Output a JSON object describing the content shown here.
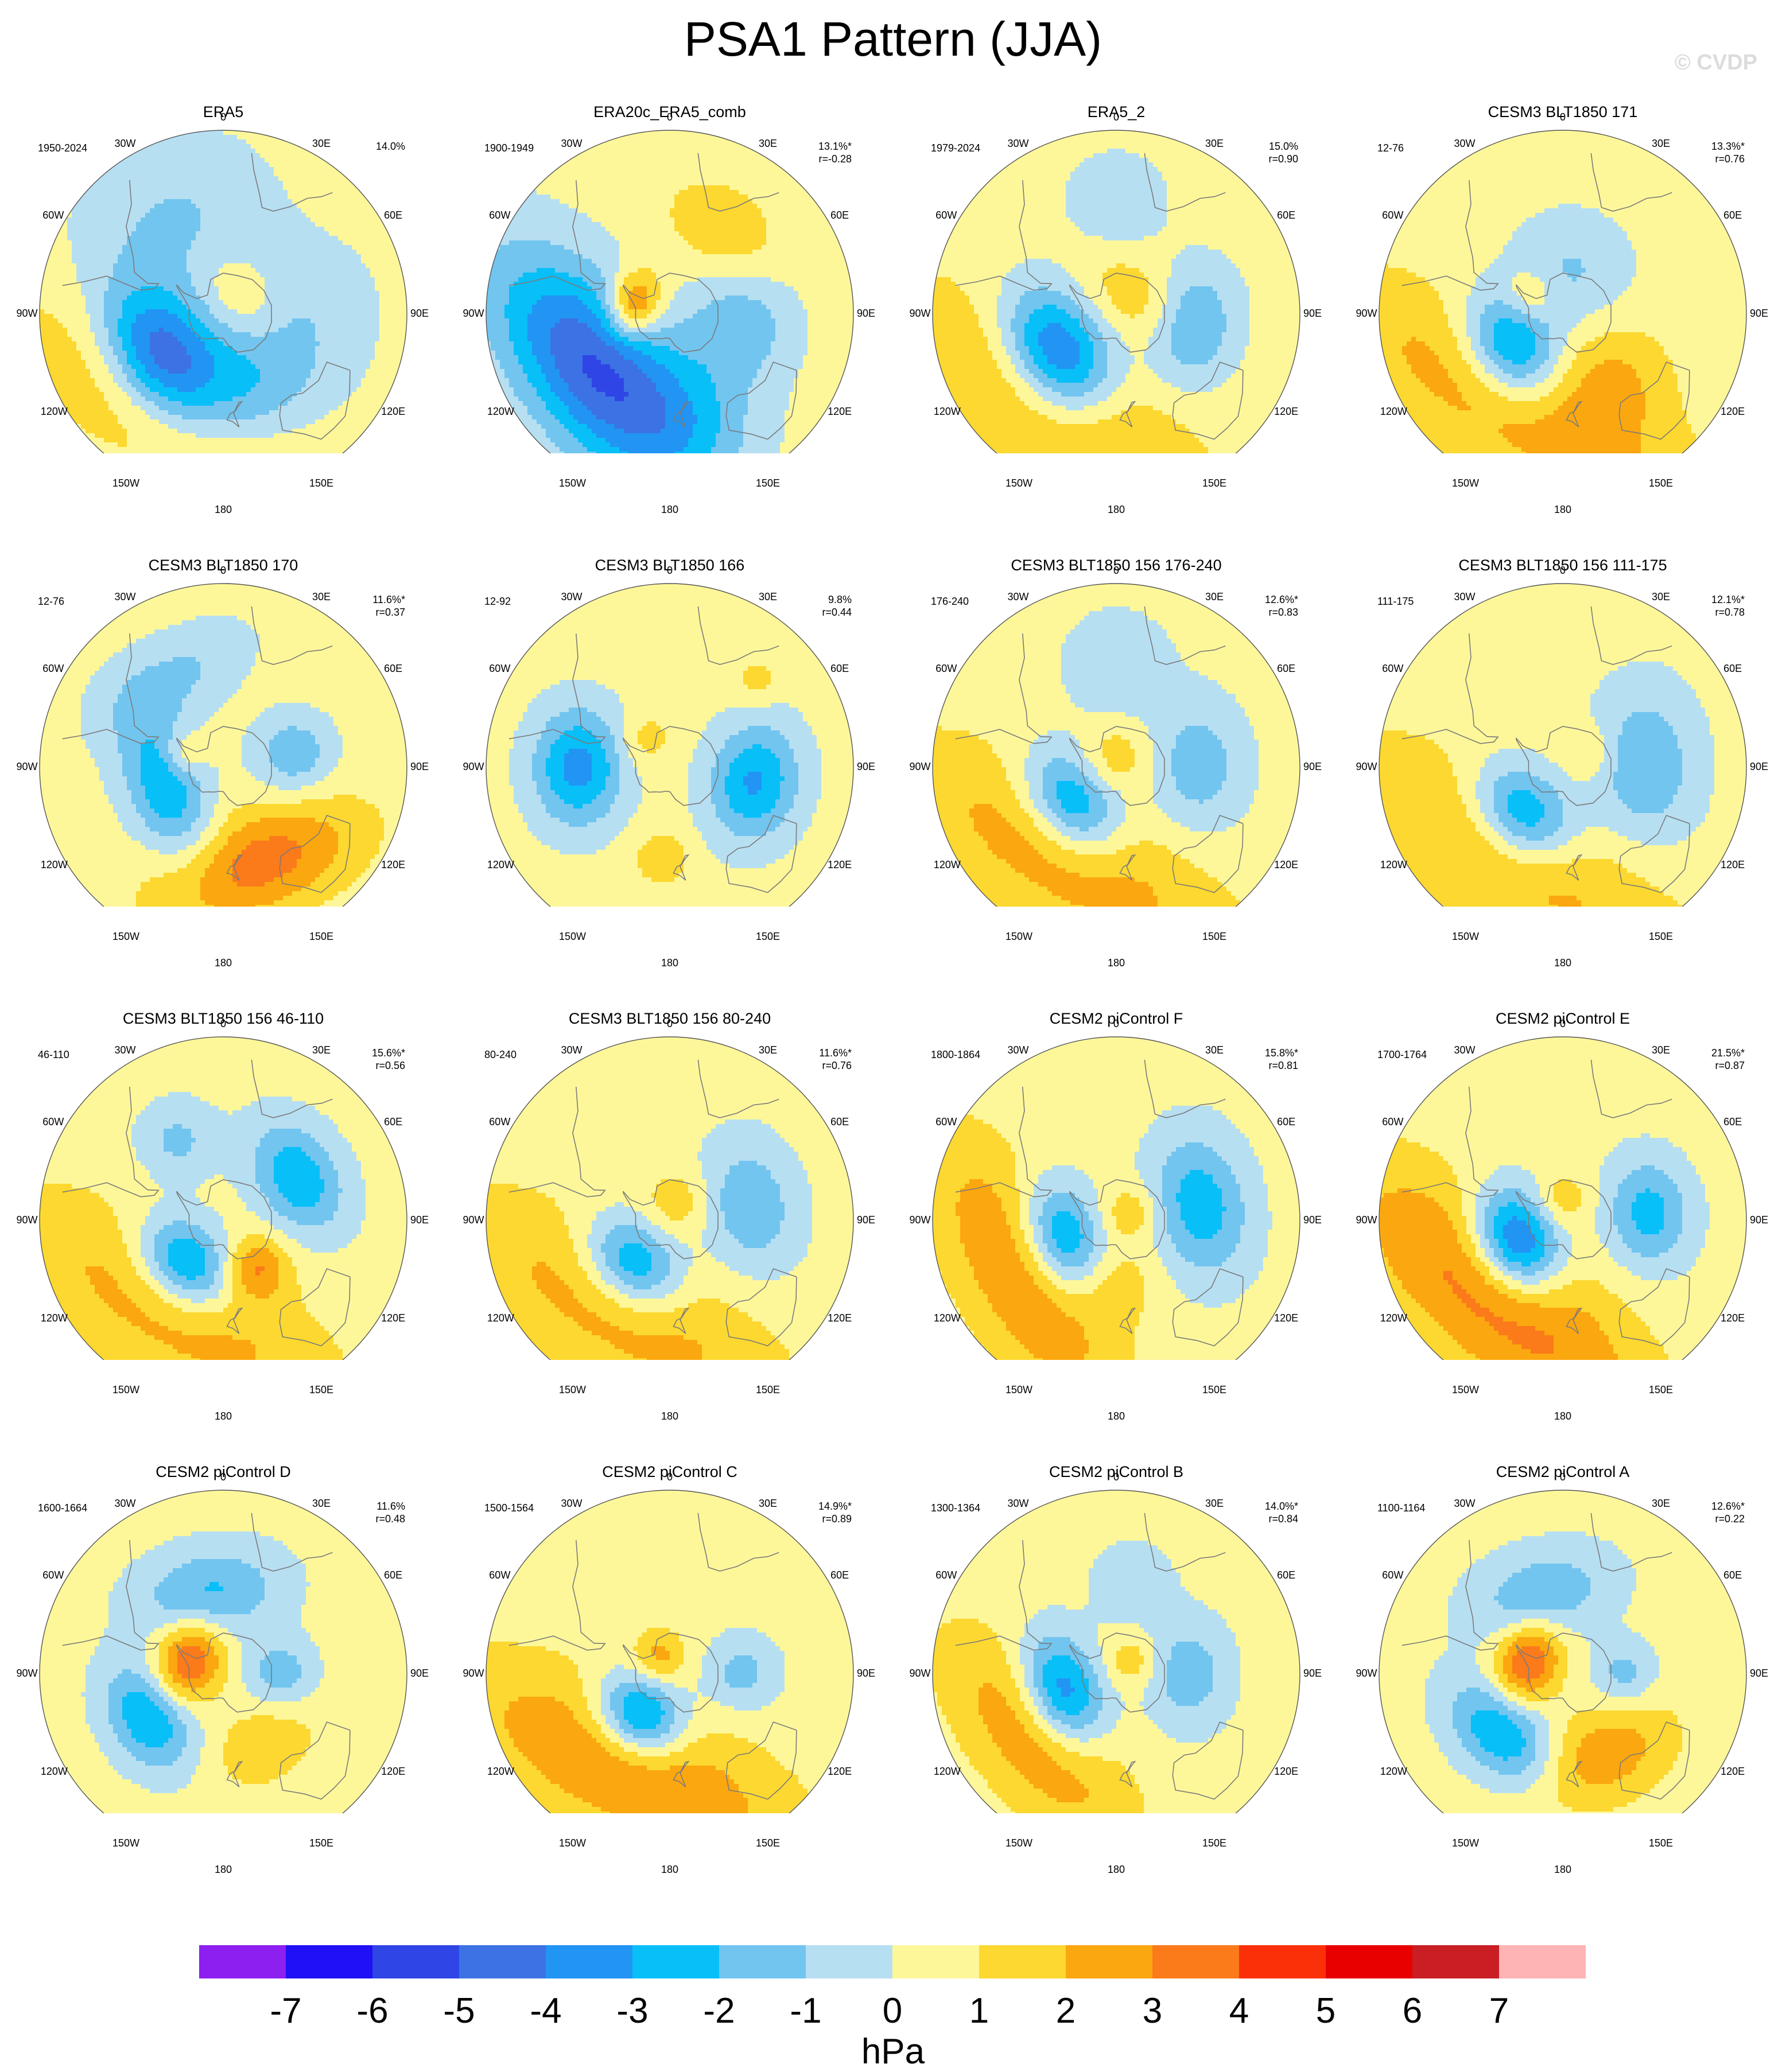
{
  "title": "PSA1 Pattern (JJA)",
  "watermark": "© CVDP",
  "compass": [
    "0",
    "30E",
    "60E",
    "90E",
    "120E",
    "150E",
    "180",
    "150W",
    "120W",
    "90W",
    "60W",
    "30W"
  ],
  "panels": [
    {
      "title": "ERA5",
      "period": "1950-2024",
      "pct": "14.0%",
      "r": "",
      "blobs": [
        {
          "lon": -126,
          "lat": -53,
          "amp": -5.8,
          "r": 0.2,
          "a": 1.4
        },
        {
          "lon": -148,
          "lat": -38,
          "amp": 2.2,
          "r": 0.26,
          "a": 2.4
        },
        {
          "lon": 50,
          "lat": -78,
          "amp": 1.5,
          "r": 0.13,
          "a": 1.4
        },
        {
          "lon": 130,
          "lat": -60,
          "amp": -1.8,
          "r": 0.28,
          "a": 1.4
        },
        {
          "lon": -30,
          "lat": -40,
          "amp": -1.5,
          "r": 0.3,
          "a": 1.2
        },
        {
          "lon": 165,
          "lat": -45,
          "amp": -1.2,
          "r": 0.22,
          "a": 1
        }
      ]
    },
    {
      "title": "ERA20c_ERA5_comb",
      "period": "1900-1949",
      "pct": "13.1%*",
      "r": "r=-0.28",
      "blobs": [
        {
          "lon": -130,
          "lat": -45,
          "amp": -5.5,
          "r": 0.26,
          "a": 2
        },
        {
          "lon": -75,
          "lat": -72,
          "amp": 3.8,
          "r": 0.1,
          "a": 1.3
        },
        {
          "lon": 100,
          "lat": -55,
          "amp": -2,
          "r": 0.2,
          "a": 1
        },
        {
          "lon": 30,
          "lat": -40,
          "amp": 1.5,
          "r": 0.16,
          "a": 1.4
        },
        {
          "lon": 160,
          "lat": -40,
          "amp": -1.2,
          "r": 0.24,
          "a": 1
        }
      ]
    },
    {
      "title": "ERA5_2",
      "period": "1979-2024",
      "pct": "15.0%",
      "r": "r=0.90",
      "blobs": [
        {
          "lon": -125,
          "lat": -55,
          "amp": -5.6,
          "r": 0.19,
          "a": 1.4
        },
        {
          "lon": -145,
          "lat": -38,
          "amp": 2.4,
          "r": 0.27,
          "a": 2.4
        },
        {
          "lon": 100,
          "lat": -52,
          "amp": -2.5,
          "r": 0.16,
          "a": 1.4
        },
        {
          "lon": 40,
          "lat": -78,
          "amp": 1.4,
          "r": 0.14,
          "a": 1.5
        },
        {
          "lon": 0,
          "lat": -35,
          "amp": -1.2,
          "r": 0.18,
          "a": 1
        }
      ]
    },
    {
      "title": "CESM3 BLT1850 171",
      "period": "12-76",
      "pct": "13.3%*",
      "r": "r=0.76",
      "blobs": [
        {
          "lon": -125,
          "lat": -60,
          "amp": -4.5,
          "r": 0.17,
          "a": 1.3
        },
        {
          "lon": -150,
          "lat": -40,
          "amp": 2.3,
          "r": 0.28,
          "a": 3
        },
        {
          "lon": 10,
          "lat": -70,
          "amp": -1.5,
          "r": 0.22,
          "a": 1
        },
        {
          "lon": -60,
          "lat": -72,
          "amp": 1.6,
          "r": 0.1,
          "a": 1
        },
        {
          "lon": 140,
          "lat": -50,
          "amp": 1.4,
          "r": 0.22,
          "a": 1
        }
      ]
    },
    {
      "title": "CESM3 BLT1850 170",
      "period": "12-76",
      "pct": "11.6%*",
      "r": "r=0.37",
      "blobs": [
        {
          "lon": -110,
          "lat": -60,
          "amp": -3.2,
          "r": 0.15,
          "a": 2
        },
        {
          "lon": 160,
          "lat": -40,
          "amp": 3.2,
          "r": 0.2,
          "a": 2
        },
        {
          "lon": 80,
          "lat": -55,
          "amp": -2.2,
          "r": 0.15,
          "a": 1
        },
        {
          "lon": -30,
          "lat": -40,
          "amp": -1.6,
          "r": 0.15,
          "a": 2
        },
        {
          "lon": -70,
          "lat": -70,
          "amp": 1.6,
          "r": 0.08,
          "a": 1
        }
      ]
    },
    {
      "title": "CESM3 BLT1850 166",
      "period": "12-92",
      "pct": "9.8%",
      "r": "r=0.44",
      "blobs": [
        {
          "lon": -90,
          "lat": -45,
          "amp": -3.8,
          "r": 0.17,
          "a": 1.3
        },
        {
          "lon": 100,
          "lat": -48,
          "amp": -3.5,
          "r": 0.17,
          "a": 1.3
        },
        {
          "lon": -175,
          "lat": -45,
          "amp": 1.6,
          "r": 0.1,
          "a": 1
        },
        {
          "lon": 45,
          "lat": -30,
          "amp": 1.2,
          "r": 0.08,
          "a": 1
        },
        {
          "lon": -40,
          "lat": -72,
          "amp": 1.2,
          "r": 0.1,
          "a": 1
        }
      ]
    },
    {
      "title": "CESM3 BLT1850 156 176-240",
      "period": "176-240",
      "pct": "12.6%*",
      "r": "r=0.83",
      "blobs": [
        {
          "lon": -130,
          "lat": -62,
          "amp": -4.2,
          "r": 0.16,
          "a": 1.4
        },
        {
          "lon": -150,
          "lat": -40,
          "amp": 2.3,
          "r": 0.28,
          "a": 2.6
        },
        {
          "lon": 90,
          "lat": -50,
          "amp": -2,
          "r": 0.18,
          "a": 1.4
        },
        {
          "lon": 0,
          "lat": -85,
          "amp": 1.4,
          "r": 0.12,
          "a": 1
        },
        {
          "lon": 0,
          "lat": -40,
          "amp": -1.2,
          "r": 0.2,
          "a": 1
        }
      ]
    },
    {
      "title": "CESM3 BLT1850 156 111-175",
      "period": "111-175",
      "pct": "12.1%*",
      "r": "r=0.78",
      "blobs": [
        {
          "lon": -140,
          "lat": -60,
          "amp": -4.3,
          "r": 0.17,
          "a": 1.3
        },
        {
          "lon": -150,
          "lat": -40,
          "amp": 2.2,
          "r": 0.28,
          "a": 2.6
        },
        {
          "lon": 90,
          "lat": -50,
          "amp": -2.3,
          "r": 0.2,
          "a": 1.5
        },
        {
          "lon": 60,
          "lat": -75,
          "amp": 1.2,
          "r": 0.1,
          "a": 1
        }
      ]
    },
    {
      "title": "CESM3 BLT1850 156 46-110",
      "period": "46-110",
      "pct": "15.6%*",
      "r": "r=0.56",
      "blobs": [
        {
          "lon": -140,
          "lat": -62,
          "amp": -4.5,
          "r": 0.16,
          "a": 1.3
        },
        {
          "lon": 60,
          "lat": -48,
          "amp": -3.2,
          "r": 0.16,
          "a": 1.4
        },
        {
          "lon": -150,
          "lat": -40,
          "amp": 2.2,
          "r": 0.28,
          "a": 2.6
        },
        {
          "lon": 145,
          "lat": -62,
          "amp": 2.6,
          "r": 0.12,
          "a": 1
        },
        {
          "lon": -30,
          "lat": -45,
          "amp": -1.6,
          "r": 0.15,
          "a": 1
        }
      ]
    },
    {
      "title": "CESM3 BLT1850 156 80-240",
      "period": "80-240",
      "pct": "11.6%*",
      "r": "r=0.76",
      "blobs": [
        {
          "lon": -140,
          "lat": -62,
          "amp": -4.2,
          "r": 0.16,
          "a": 1.3
        },
        {
          "lon": -150,
          "lat": -40,
          "amp": 2.2,
          "r": 0.28,
          "a": 2.6
        },
        {
          "lon": 80,
          "lat": -50,
          "amp": -2.2,
          "r": 0.18,
          "a": 1.4
        },
        {
          "lon": 20,
          "lat": -80,
          "amp": 1.4,
          "r": 0.12,
          "a": 1
        }
      ]
    },
    {
      "title": "CESM2 piControl F",
      "period": "1800-1864",
      "pct": "15.8%*",
      "r": "r=0.81",
      "blobs": [
        {
          "lon": -110,
          "lat": -62,
          "amp": -4.3,
          "r": 0.15,
          "a": 1.5
        },
        {
          "lon": -120,
          "lat": -38,
          "amp": 2.8,
          "r": 0.24,
          "a": 2.4
        },
        {
          "lon": 80,
          "lat": -48,
          "amp": -3,
          "r": 0.18,
          "a": 1.5
        },
        {
          "lon": 60,
          "lat": -82,
          "amp": 1.6,
          "r": 0.1,
          "a": 1
        },
        {
          "lon": 180,
          "lat": -60,
          "amp": 1.2,
          "r": 0.15,
          "a": 1
        }
      ]
    },
    {
      "title": "CESM2 piControl E",
      "period": "1700-1764",
      "pct": "21.5%*",
      "r": "r=0.87",
      "blobs": [
        {
          "lon": -115,
          "lat": -65,
          "amp": -5.6,
          "r": 0.16,
          "a": 1.3
        },
        {
          "lon": -140,
          "lat": -40,
          "amp": 3.2,
          "r": 0.28,
          "a": 2.6
        },
        {
          "lon": 85,
          "lat": -48,
          "amp": -2.8,
          "r": 0.16,
          "a": 1.3
        },
        {
          "lon": 0,
          "lat": -80,
          "amp": 1.5,
          "r": 0.1,
          "a": 1
        }
      ]
    },
    {
      "title": "CESM2 piControl D",
      "period": "1600-1664",
      "pct": "11.6%",
      "r": "r=0.48",
      "blobs": [
        {
          "lon": -70,
          "lat": -72,
          "amp": 3.8,
          "r": 0.13,
          "a": 1.3
        },
        {
          "lon": -120,
          "lat": -48,
          "amp": -3.5,
          "r": 0.15,
          "a": 1.4
        },
        {
          "lon": -10,
          "lat": -50,
          "amp": -2.6,
          "r": 0.17,
          "a": 1.6
        },
        {
          "lon": 90,
          "lat": -62,
          "amp": -2,
          "r": 0.13,
          "a": 1
        },
        {
          "lon": 150,
          "lat": -50,
          "amp": 1.5,
          "r": 0.15,
          "a": 1.4
        }
      ]
    },
    {
      "title": "CESM2 piControl C",
      "period": "1500-1564",
      "pct": "14.9%*",
      "r": "r=0.89",
      "blobs": [
        {
          "lon": -145,
          "lat": -65,
          "amp": -4.8,
          "r": 0.15,
          "a": 1.2
        },
        {
          "lon": -155,
          "lat": -40,
          "amp": 2.7,
          "r": 0.28,
          "a": 2.6
        },
        {
          "lon": 90,
          "lat": -55,
          "amp": -1.8,
          "r": 0.14,
          "a": 1
        },
        {
          "lon": -30,
          "lat": -80,
          "amp": 2,
          "r": 0.1,
          "a": 1
        }
      ]
    },
    {
      "title": "CESM2 piControl B",
      "period": "1300-1364",
      "pct": "14.0%*",
      "r": "r=0.84",
      "blobs": [
        {
          "lon": -110,
          "lat": -62,
          "amp": -4.6,
          "r": 0.15,
          "a": 1.5
        },
        {
          "lon": -130,
          "lat": -40,
          "amp": 2.6,
          "r": 0.22,
          "a": 2.2
        },
        {
          "lon": 90,
          "lat": -55,
          "amp": -2,
          "r": 0.16,
          "a": 1.3
        },
        {
          "lon": 50,
          "lat": -80,
          "amp": 1.5,
          "r": 0.1,
          "a": 1
        },
        {
          "lon": 10,
          "lat": -45,
          "amp": -1.2,
          "r": 0.15,
          "a": 1
        }
      ]
    },
    {
      "title": "CESM2 piControl A",
      "period": "1100-1164",
      "pct": "12.6%*",
      "r": "r=0.22",
      "blobs": [
        {
          "lon": -70,
          "lat": -72,
          "amp": 4,
          "r": 0.12,
          "a": 1.3
        },
        {
          "lon": -135,
          "lat": -48,
          "amp": -3.4,
          "r": 0.15,
          "a": 1.6
        },
        {
          "lon": -15,
          "lat": -50,
          "amp": -2.2,
          "r": 0.17,
          "a": 1.6
        },
        {
          "lon": 90,
          "lat": -60,
          "amp": -1.8,
          "r": 0.12,
          "a": 1
        },
        {
          "lon": 155,
          "lat": -45,
          "amp": 2.4,
          "r": 0.18,
          "a": 1.6
        }
      ]
    }
  ],
  "colorbar": {
    "unit": "hPa",
    "ticks": [
      "-7",
      "-6",
      "-5",
      "-4",
      "-3",
      "-2",
      "-1",
      "0",
      "1",
      "2",
      "3",
      "4",
      "5",
      "6",
      "7"
    ],
    "colors": [
      "#8d1ff0",
      "#1f10f5",
      "#2f45e6",
      "#3c72e4",
      "#2194f4",
      "#08bff8",
      "#72c5ef",
      "#b7dff2",
      "#fef79a",
      "#fcd830",
      "#fba70f",
      "#fb7a1a",
      "#fc3008",
      "#e80000",
      "#c81e24",
      "#feb4b4"
    ]
  }
}
